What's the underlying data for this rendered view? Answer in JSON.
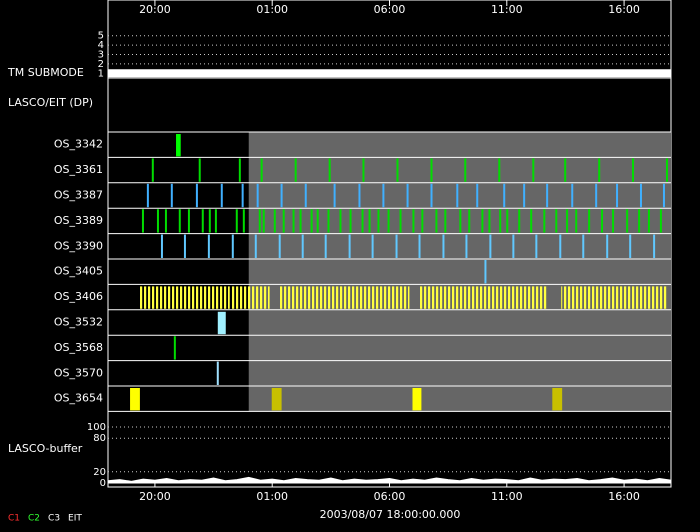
{
  "chart_data": {
    "type": "timeline",
    "xlim": [
      0,
      24
    ],
    "xticks": [
      {
        "value": 2,
        "label": "20:00"
      },
      {
        "value": 7,
        "label": "01:00"
      },
      {
        "value": 12,
        "label": "06:00"
      },
      {
        "value": 17,
        "label": "11:00"
      },
      {
        "value": 22,
        "label": "16:00"
      }
    ],
    "xlabel": "2003/08/07 18:00:00.000",
    "submode": {
      "label": "TM SUBMODE",
      "ylim": [
        0.5,
        5.5
      ],
      "yticks": [
        1,
        2,
        3,
        4,
        5
      ],
      "x": [
        0,
        24
      ],
      "values": [
        1,
        1
      ],
      "color": "#ffffff"
    },
    "panel_label": "LASCO/EIT (DP)",
    "shaded_from": 6,
    "rows": [
      {
        "name": "OS_3342",
        "color": "#00ff00",
        "intervals": [
          [
            2.9,
            3.1
          ]
        ]
      },
      {
        "name": "OS_3361",
        "color": "#00dd00",
        "events": [
          1.91,
          3.91,
          5.62,
          6.55,
          8.0,
          9.45,
          10.89,
          12.34,
          13.79,
          15.23,
          16.68,
          18.13,
          19.49,
          20.94,
          22.38,
          23.83
        ]
      },
      {
        "name": "OS_3387",
        "color": "#40b0ff",
        "events": [
          1.7,
          2.72,
          3.79,
          4.85,
          5.74,
          6.38,
          7.4,
          8.43,
          9.66,
          10.72,
          11.74,
          12.77,
          13.79,
          14.89,
          15.74,
          16.89,
          17.74,
          18.72,
          19.79,
          20.81,
          21.7,
          22.72,
          23.7
        ]
      },
      {
        "name": "OS_3389",
        "color": "#00dd00",
        "events": [
          1.49,
          2.13,
          2.47,
          3.06,
          3.45,
          4.04,
          4.34,
          4.6,
          5.49,
          5.79,
          6.47,
          6.64,
          7.11,
          7.49,
          7.91,
          8.21,
          8.68,
          8.94,
          9.4,
          9.91,
          10.34,
          10.85,
          11.15,
          11.53,
          11.96,
          12.47,
          13.02,
          13.4,
          14.0,
          14.38,
          15.02,
          15.4,
          15.96,
          16.26,
          16.72,
          17.02,
          17.53,
          18.04,
          18.6,
          19.11,
          19.57,
          19.96,
          20.51,
          21.06,
          21.53,
          22.13,
          22.64,
          23.06,
          23.57
        ]
      },
      {
        "name": "OS_3390",
        "color": "#60c8ff",
        "events": [
          2.3,
          3.28,
          4.3,
          5.32,
          6.3,
          7.32,
          8.3,
          9.28,
          10.3,
          11.28,
          12.3,
          13.28,
          14.3,
          15.28,
          16.3,
          17.28,
          18.26,
          19.28,
          20.26,
          21.28,
          22.26,
          23.28
        ]
      },
      {
        "name": "OS_3405",
        "color": "#60c8ff",
        "events": [
          16.09
        ]
      },
      {
        "name": "OS_3406",
        "color": "#ffff40",
        "striped": true,
        "intervals": [
          [
            1.36,
            5.19
          ],
          [
            5.28,
            6.89
          ],
          [
            7.32,
            12.85
          ],
          [
            13.28,
            18.72
          ],
          [
            19.32,
            23.83
          ]
        ]
      },
      {
        "name": "OS_3532",
        "color": "#a0f0ff",
        "intervals": [
          [
            4.68,
            5.02
          ]
        ]
      },
      {
        "name": "OS_3568",
        "color": "#00dd00",
        "events": [
          2.85
        ]
      },
      {
        "name": "OS_3570",
        "color": "#a0e0ff",
        "events": [
          4.68
        ]
      },
      {
        "name": "OS_3654",
        "color": "#ffff00",
        "intervals": [
          [
            0.94,
            1.36
          ],
          [
            6.98,
            7.4
          ],
          [
            12.98,
            13.36
          ],
          [
            18.94,
            19.36
          ]
        ],
        "colors": [
          "#ffff00",
          "#c8c000",
          "#ffff00",
          "#c8c000"
        ]
      }
    ],
    "buffer": {
      "label": "LASCO-buffer",
      "ylim": [
        0,
        100
      ],
      "yticks": [
        0,
        20,
        80,
        100
      ],
      "grid": true,
      "color": "#ffffff",
      "x": [
        0,
        0.5,
        1,
        1.5,
        2,
        2.5,
        3,
        3.5,
        4,
        4.5,
        5,
        5.5,
        6,
        6.5,
        7,
        7.5,
        8,
        8.5,
        9,
        9.5,
        10,
        10.5,
        11,
        11.5,
        12,
        12.5,
        13,
        13.5,
        14,
        14.5,
        15,
        15.5,
        16,
        16.5,
        17,
        17.5,
        18,
        18.5,
        19,
        19.5,
        20,
        20.5,
        21,
        21.5,
        22,
        22.5,
        23,
        23.5,
        24
      ],
      "values": [
        4,
        6,
        3,
        7,
        5,
        8,
        4,
        6,
        5,
        9,
        4,
        6,
        10,
        5,
        7,
        4,
        8,
        6,
        5,
        9,
        4,
        7,
        5,
        6,
        8,
        4,
        7,
        5,
        9,
        6,
        4,
        8,
        5,
        7,
        6,
        4,
        9,
        5,
        7,
        6,
        8,
        4,
        6,
        9,
        5,
        7,
        4,
        8,
        5
      ]
    },
    "legend": [
      {
        "name": "C1",
        "color": "#ff3030"
      },
      {
        "name": "C2",
        "color": "#30ff30"
      },
      {
        "name": "C3",
        "color": "#ffffff"
      },
      {
        "name": "EIT",
        "color": "#ffffff"
      }
    ]
  }
}
